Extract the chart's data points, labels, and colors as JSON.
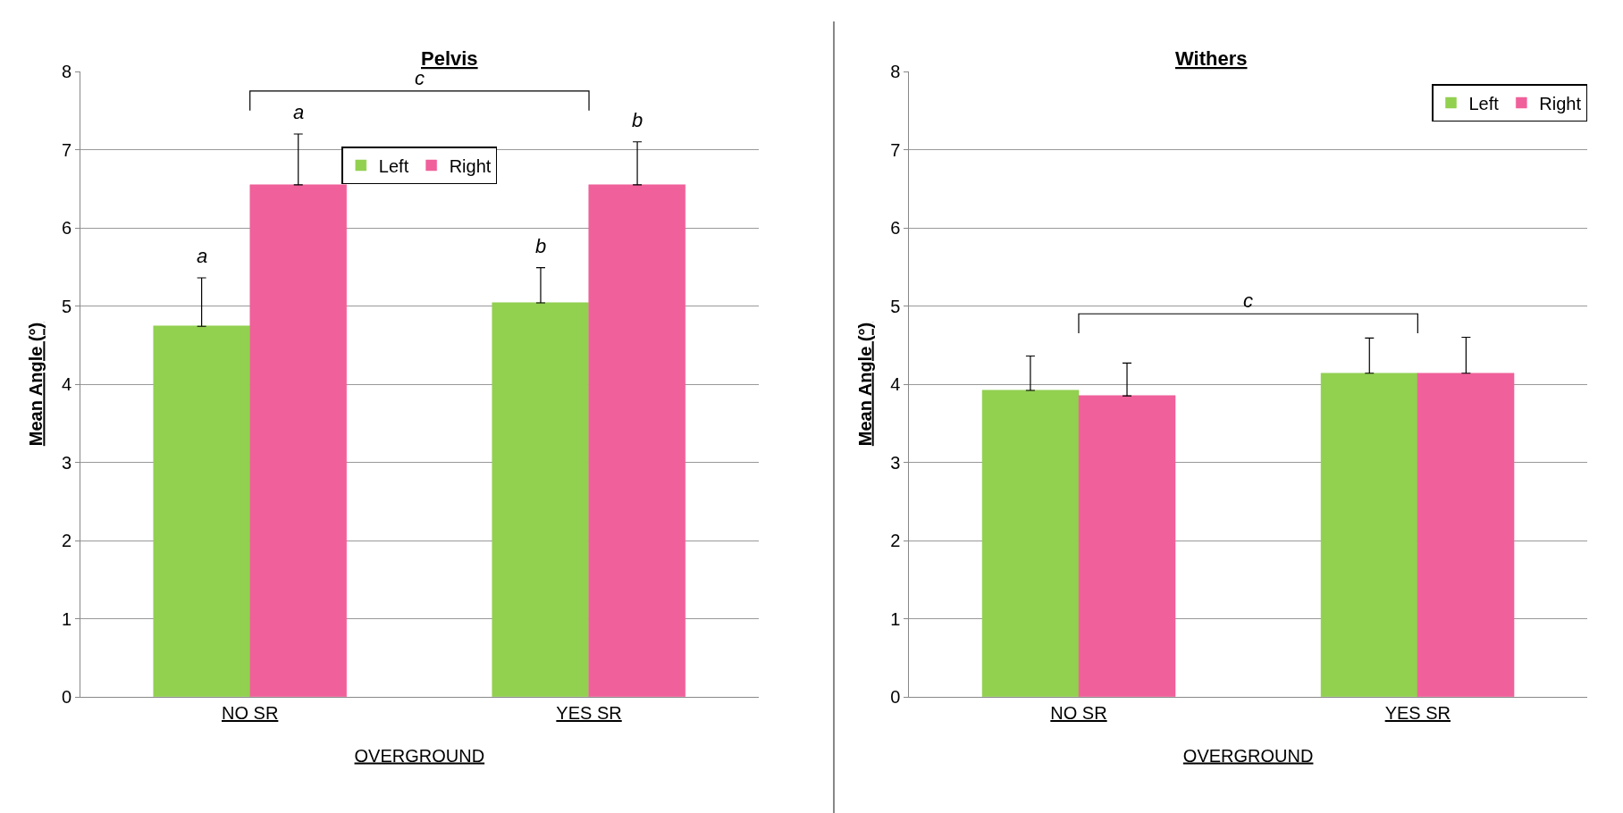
{
  "chart_data": [
    {
      "type": "bar",
      "title": "Pelvis",
      "ylabel": "Mean Angle (°)",
      "xlabel": "OVERGROUND",
      "categories": [
        "NO SR",
        "YES SR"
      ],
      "ylim": [
        0,
        8
      ],
      "yticks": [
        0,
        1,
        2,
        3,
        4,
        5,
        6,
        7,
        8
      ],
      "grid": "y",
      "legend": "top",
      "series": [
        {
          "name": "Left",
          "color": "#92d050",
          "values": [
            4.74,
            5.04
          ],
          "errors": [
            [
              4.74,
              5.36
            ],
            [
              5.04,
              5.49
            ]
          ]
        },
        {
          "name": "Right",
          "color": "#f0609a",
          "values": [
            6.55,
            6.55
          ],
          "errors": [
            [
              6.55,
              7.2
            ],
            [
              6.55,
              7.1
            ]
          ]
        }
      ],
      "annotations": [
        "a",
        "a",
        "b",
        "b",
        "c"
      ]
    },
    {
      "type": "bar",
      "title": "Withers",
      "ylabel": "Mean Angle (°)",
      "xlabel": "OVERGROUND",
      "categories": [
        "NO SR",
        "YES SR"
      ],
      "ylim": [
        0,
        8
      ],
      "yticks": [
        0,
        1,
        2,
        3,
        4,
        5,
        6,
        7,
        8
      ],
      "grid": "y",
      "legend": "top right",
      "series": [
        {
          "name": "Left",
          "color": "#92d050",
          "values": [
            3.92,
            4.14
          ],
          "errors": [
            [
              3.92,
              4.36
            ],
            [
              4.14,
              4.59
            ]
          ]
        },
        {
          "name": "Right",
          "color": "#f0609a",
          "values": [
            3.85,
            4.14
          ],
          "errors": [
            [
              3.85,
              4.27
            ],
            [
              4.14,
              4.6
            ]
          ]
        }
      ],
      "annotations": [
        "c"
      ]
    }
  ]
}
